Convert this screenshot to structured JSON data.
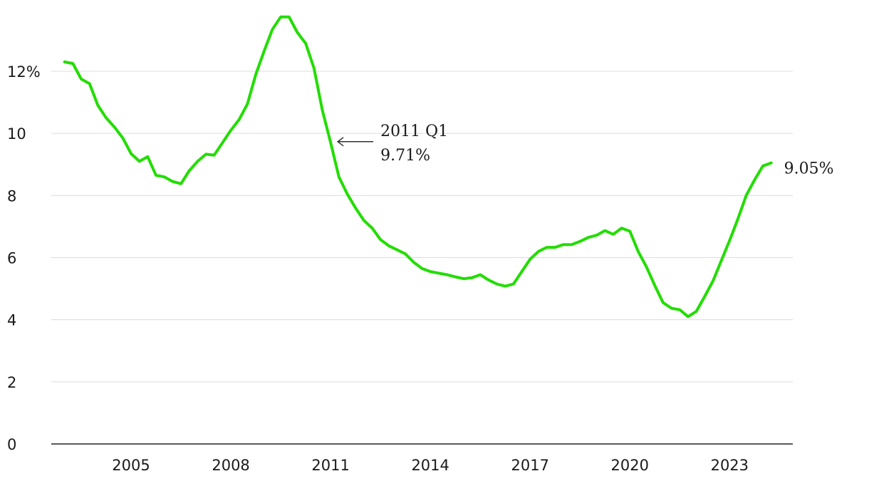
{
  "chart_data": {
    "type": "line",
    "title": "",
    "xlabel": "",
    "ylabel": "",
    "y_ticks": [
      {
        "value": 0,
        "label": "0"
      },
      {
        "value": 2,
        "label": "2"
      },
      {
        "value": 4,
        "label": "4"
      },
      {
        "value": 6,
        "label": "6"
      },
      {
        "value": 8,
        "label": "8"
      },
      {
        "value": 10,
        "label": "10"
      },
      {
        "value": 12,
        "label": "12%"
      }
    ],
    "x_ticks": [
      {
        "value": 2005,
        "label": "2005"
      },
      {
        "value": 2008,
        "label": "2008"
      },
      {
        "value": 2011,
        "label": "2011"
      },
      {
        "value": 2014,
        "label": "2014"
      },
      {
        "value": 2017,
        "label": "2017"
      },
      {
        "value": 2020,
        "label": "2020"
      },
      {
        "value": 2023,
        "label": "2023"
      }
    ],
    "xlim": [
      2002.6,
      2024.9
    ],
    "ylim": [
      0,
      14
    ],
    "grid": "horizontal",
    "color": "#22dd00",
    "series": [
      {
        "points": [
          [
            2003.0,
            12.3
          ],
          [
            2003.25,
            12.25
          ],
          [
            2003.5,
            11.75
          ],
          [
            2003.75,
            11.6
          ],
          [
            2004.0,
            10.9
          ],
          [
            2004.25,
            10.5
          ],
          [
            2004.5,
            10.2
          ],
          [
            2004.75,
            9.85
          ],
          [
            2005.0,
            9.35
          ],
          [
            2005.25,
            9.1
          ],
          [
            2005.5,
            9.25
          ],
          [
            2005.75,
            8.65
          ],
          [
            2006.0,
            8.6
          ],
          [
            2006.25,
            8.45
          ],
          [
            2006.5,
            8.38
          ],
          [
            2006.75,
            8.8
          ],
          [
            2007.0,
            9.1
          ],
          [
            2007.25,
            9.33
          ],
          [
            2007.5,
            9.3
          ],
          [
            2007.75,
            9.7
          ],
          [
            2008.0,
            10.1
          ],
          [
            2008.25,
            10.45
          ],
          [
            2008.5,
            10.95
          ],
          [
            2008.75,
            11.9
          ],
          [
            2009.0,
            12.65
          ],
          [
            2009.25,
            13.35
          ],
          [
            2009.5,
            13.75
          ],
          [
            2009.75,
            13.75
          ],
          [
            2010.0,
            13.25
          ],
          [
            2010.25,
            12.9
          ],
          [
            2010.5,
            12.1
          ],
          [
            2010.75,
            10.75
          ],
          [
            2011.0,
            9.71
          ],
          [
            2011.25,
            8.6
          ],
          [
            2011.5,
            8.05
          ],
          [
            2011.75,
            7.6
          ],
          [
            2012.0,
            7.2
          ],
          [
            2012.25,
            6.95
          ],
          [
            2012.5,
            6.58
          ],
          [
            2012.75,
            6.38
          ],
          [
            2013.0,
            6.25
          ],
          [
            2013.25,
            6.12
          ],
          [
            2013.5,
            5.85
          ],
          [
            2013.75,
            5.65
          ],
          [
            2014.0,
            5.55
          ],
          [
            2014.25,
            5.5
          ],
          [
            2014.5,
            5.45
          ],
          [
            2014.75,
            5.38
          ],
          [
            2015.0,
            5.32
          ],
          [
            2015.25,
            5.35
          ],
          [
            2015.5,
            5.45
          ],
          [
            2015.75,
            5.28
          ],
          [
            2016.0,
            5.15
          ],
          [
            2016.25,
            5.08
          ],
          [
            2016.5,
            5.15
          ],
          [
            2016.75,
            5.55
          ],
          [
            2017.0,
            5.95
          ],
          [
            2017.25,
            6.2
          ],
          [
            2017.5,
            6.33
          ],
          [
            2017.75,
            6.33
          ],
          [
            2018.0,
            6.42
          ],
          [
            2018.25,
            6.42
          ],
          [
            2018.5,
            6.52
          ],
          [
            2018.75,
            6.65
          ],
          [
            2019.0,
            6.72
          ],
          [
            2019.25,
            6.87
          ],
          [
            2019.5,
            6.75
          ],
          [
            2019.75,
            6.95
          ],
          [
            2020.0,
            6.85
          ],
          [
            2020.25,
            6.2
          ],
          [
            2020.5,
            5.7
          ],
          [
            2020.75,
            5.1
          ],
          [
            2021.0,
            4.55
          ],
          [
            2021.25,
            4.37
          ],
          [
            2021.5,
            4.32
          ],
          [
            2021.75,
            4.1
          ],
          [
            2022.0,
            4.27
          ],
          [
            2022.25,
            4.75
          ],
          [
            2022.5,
            5.25
          ],
          [
            2022.75,
            5.9
          ],
          [
            2023.0,
            6.55
          ],
          [
            2023.25,
            7.25
          ],
          [
            2023.5,
            8.0
          ],
          [
            2023.75,
            8.5
          ],
          [
            2024.0,
            8.95
          ],
          [
            2024.25,
            9.05
          ]
        ]
      }
    ],
    "annotations": [
      {
        "x": 2011.0,
        "y": 9.71,
        "line1": "2011 Q1",
        "line2": "9.71%"
      }
    ],
    "end_label": "9.05%"
  }
}
